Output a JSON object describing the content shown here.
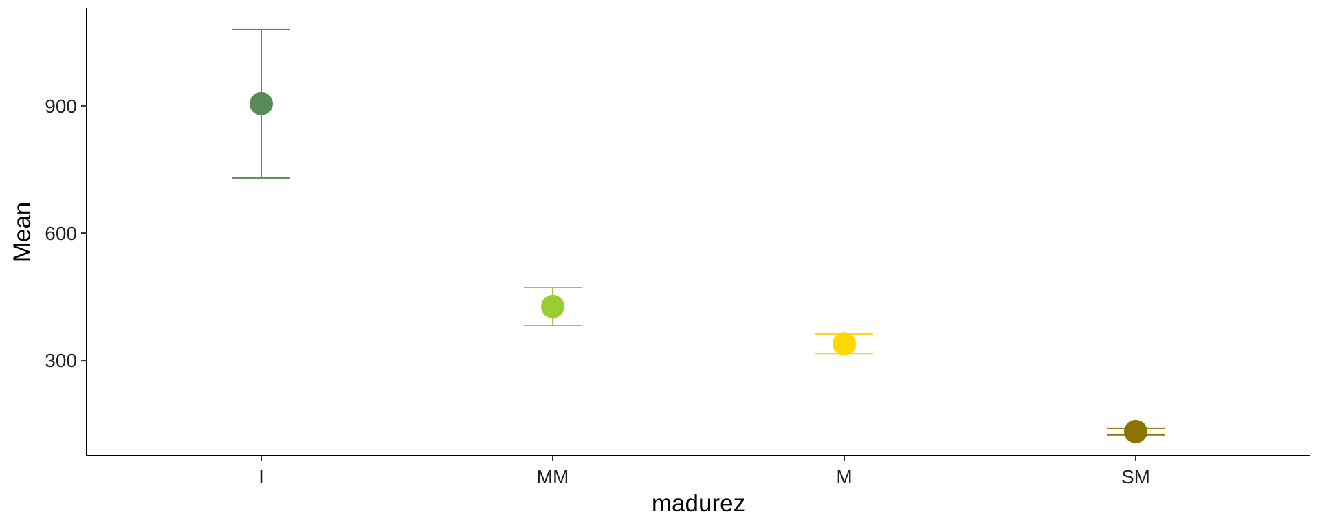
{
  "chart_data": {
    "type": "scatter",
    "xlabel": "madurez",
    "ylabel": "Mean",
    "categories": [
      "I",
      "MM",
      "M",
      "SM"
    ],
    "points": [
      {
        "category": "I",
        "mean": 905,
        "lower": 730,
        "upper": 1080,
        "color": "#5a8a56"
      },
      {
        "category": "MM",
        "mean": 427,
        "lower": 383,
        "upper": 472,
        "color": "#9acd32"
      },
      {
        "category": "M",
        "mean": 339,
        "lower": 316,
        "upper": 362,
        "color": "#ffd700"
      },
      {
        "category": "SM",
        "mean": 132,
        "lower": 124,
        "upper": 140,
        "color": "#8b7300"
      }
    ],
    "y_ticks": [
      300,
      600,
      900
    ],
    "ylim": [
      75,
      1130
    ],
    "grid": false,
    "legend": "none",
    "error_bars": true
  }
}
